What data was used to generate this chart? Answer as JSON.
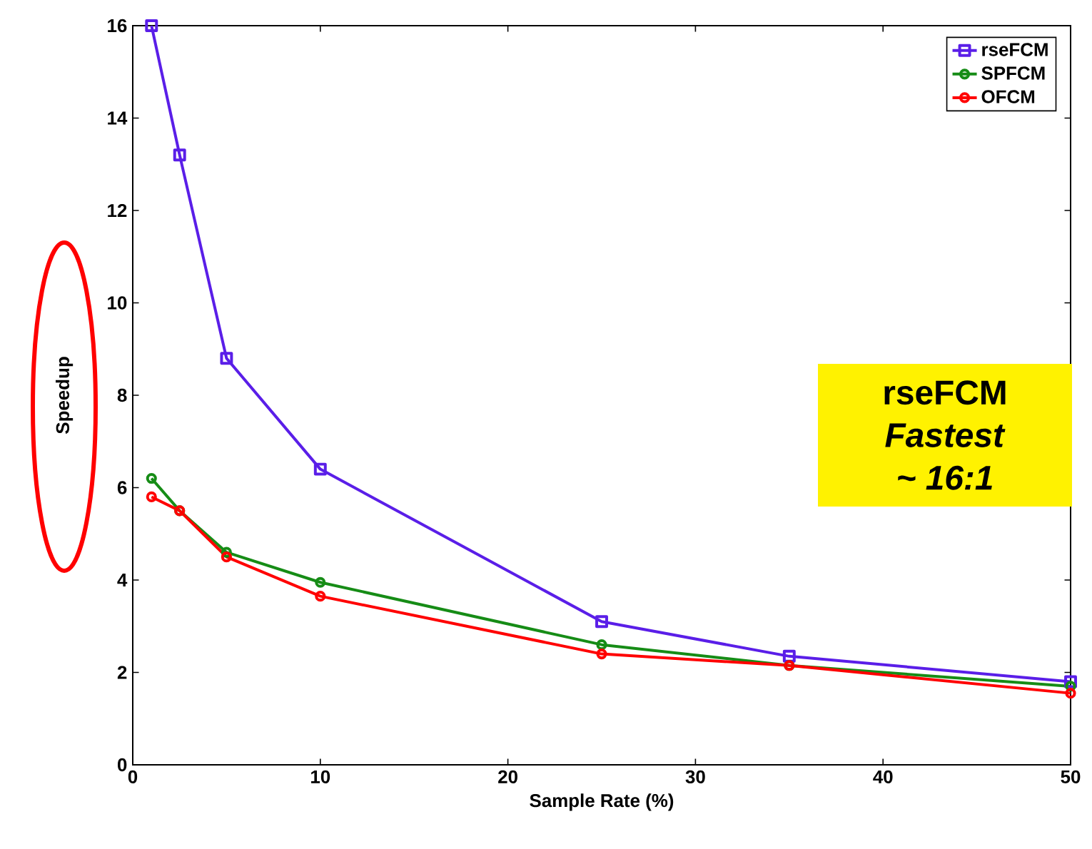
{
  "chart_data": {
    "type": "line",
    "xlabel": "Sample Rate (%)",
    "ylabel": "Speedup",
    "x": [
      1,
      2.5,
      5,
      10,
      25,
      35,
      50
    ],
    "series": [
      {
        "name": "rseFCM",
        "color": "#5a1ee8",
        "marker": "square",
        "values": [
          16.0,
          13.2,
          8.8,
          6.4,
          3.1,
          2.35,
          1.8
        ]
      },
      {
        "name": "SPFCM",
        "color": "#168c16",
        "marker": "circle",
        "values": [
          6.2,
          5.5,
          4.6,
          3.95,
          2.6,
          2.15,
          1.7
        ]
      },
      {
        "name": "OFCM",
        "color": "#ff0000",
        "marker": "circle",
        "values": [
          5.8,
          5.5,
          4.5,
          3.65,
          2.4,
          2.15,
          1.55
        ]
      }
    ],
    "xlim": [
      0,
      50
    ],
    "xticks": [
      0,
      10,
      20,
      30,
      40,
      50
    ],
    "ylim": [
      0,
      16
    ],
    "yticks": [
      0,
      2,
      4,
      6,
      8,
      10,
      12,
      14,
      16
    ],
    "grid": false,
    "legend": "top right",
    "line_style": "solid",
    "annotations": [
      "rseFCM",
      "*Fastest*",
      "*~ 16:1*"
    ]
  }
}
